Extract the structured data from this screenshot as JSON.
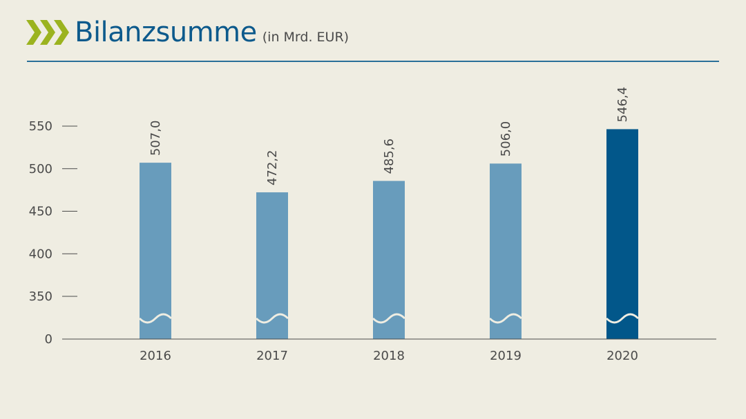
{
  "header": {
    "title": "Bilanzsumme",
    "subtitle": "(in Mrd. EUR)"
  },
  "colors": {
    "background": "#efede2",
    "title": "#0d5a8c",
    "chevron": "#9bb31f",
    "bar": "#689cbc",
    "bar_highlight": "#02578a",
    "axis": "#4a4a4a"
  },
  "chart_data": {
    "type": "bar",
    "title": "Bilanzsumme",
    "subtitle": "(in Mrd. EUR)",
    "categories": [
      "2016",
      "2017",
      "2018",
      "2019",
      "2020"
    ],
    "values": [
      507.0,
      472.2,
      485.6,
      506.0,
      546.4
    ],
    "value_labels": [
      "507,0",
      "472,2",
      "485,6",
      "506,0",
      "546,4"
    ],
    "highlight_index": 4,
    "y_ticks": [
      0,
      350,
      400,
      450,
      500,
      550
    ],
    "y_tick_labels": [
      "0",
      "350",
      "400",
      "450",
      "500",
      "550"
    ],
    "ylim": [
      0,
      550
    ],
    "axis_break": true,
    "grid": false,
    "xlabel": "",
    "ylabel": ""
  }
}
